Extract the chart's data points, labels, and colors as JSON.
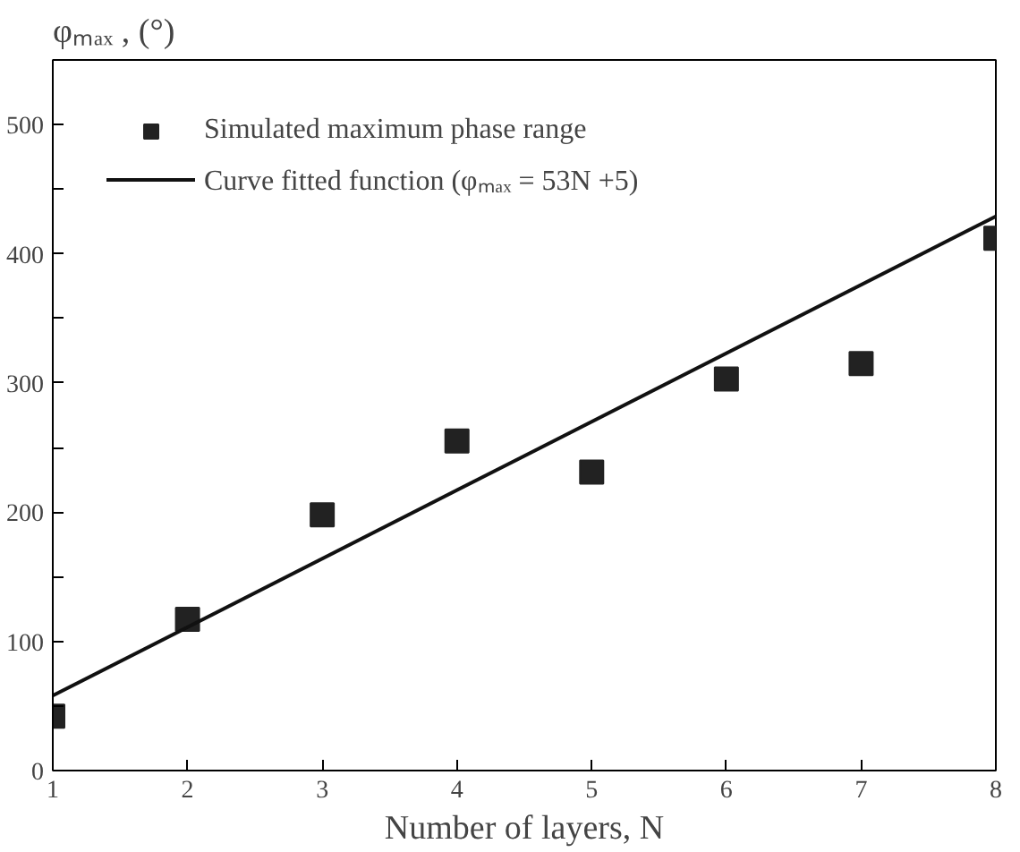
{
  "chart_data": {
    "type": "scatter",
    "xlabel": "Number of layers, N",
    "ylabel": "φₘₐₓ , (°)",
    "x": [
      1,
      2,
      3,
      4,
      5,
      6,
      7,
      8
    ],
    "series": [
      {
        "name": "Simulated maximum phase range",
        "marker": "square",
        "color": "#222222",
        "values": [
          42,
          117,
          198,
          255,
          231,
          303,
          315,
          412
        ]
      },
      {
        "name": "Curve fitted function (φₘₐₓ = 53N +5)",
        "type": "line",
        "line_style": "solid",
        "color": "#111111",
        "x": [
          1,
          8
        ],
        "values": [
          58,
          429
        ]
      }
    ],
    "xlim": [
      1,
      8
    ],
    "ylim": [
      0,
      550
    ],
    "xticks": [
      1,
      2,
      3,
      4,
      5,
      6,
      7,
      8
    ],
    "yticks": [
      0,
      {
        "value": 50,
        "label": null
      },
      100,
      {
        "value": 150,
        "label": null
      },
      200,
      {
        "value": 250,
        "label": null
      },
      300,
      {
        "value": 350,
        "label": null
      },
      400,
      {
        "value": 450,
        "label": null
      },
      500,
      {
        "value": 550,
        "label": null
      }
    ],
    "grid": false,
    "legend": "top left"
  }
}
